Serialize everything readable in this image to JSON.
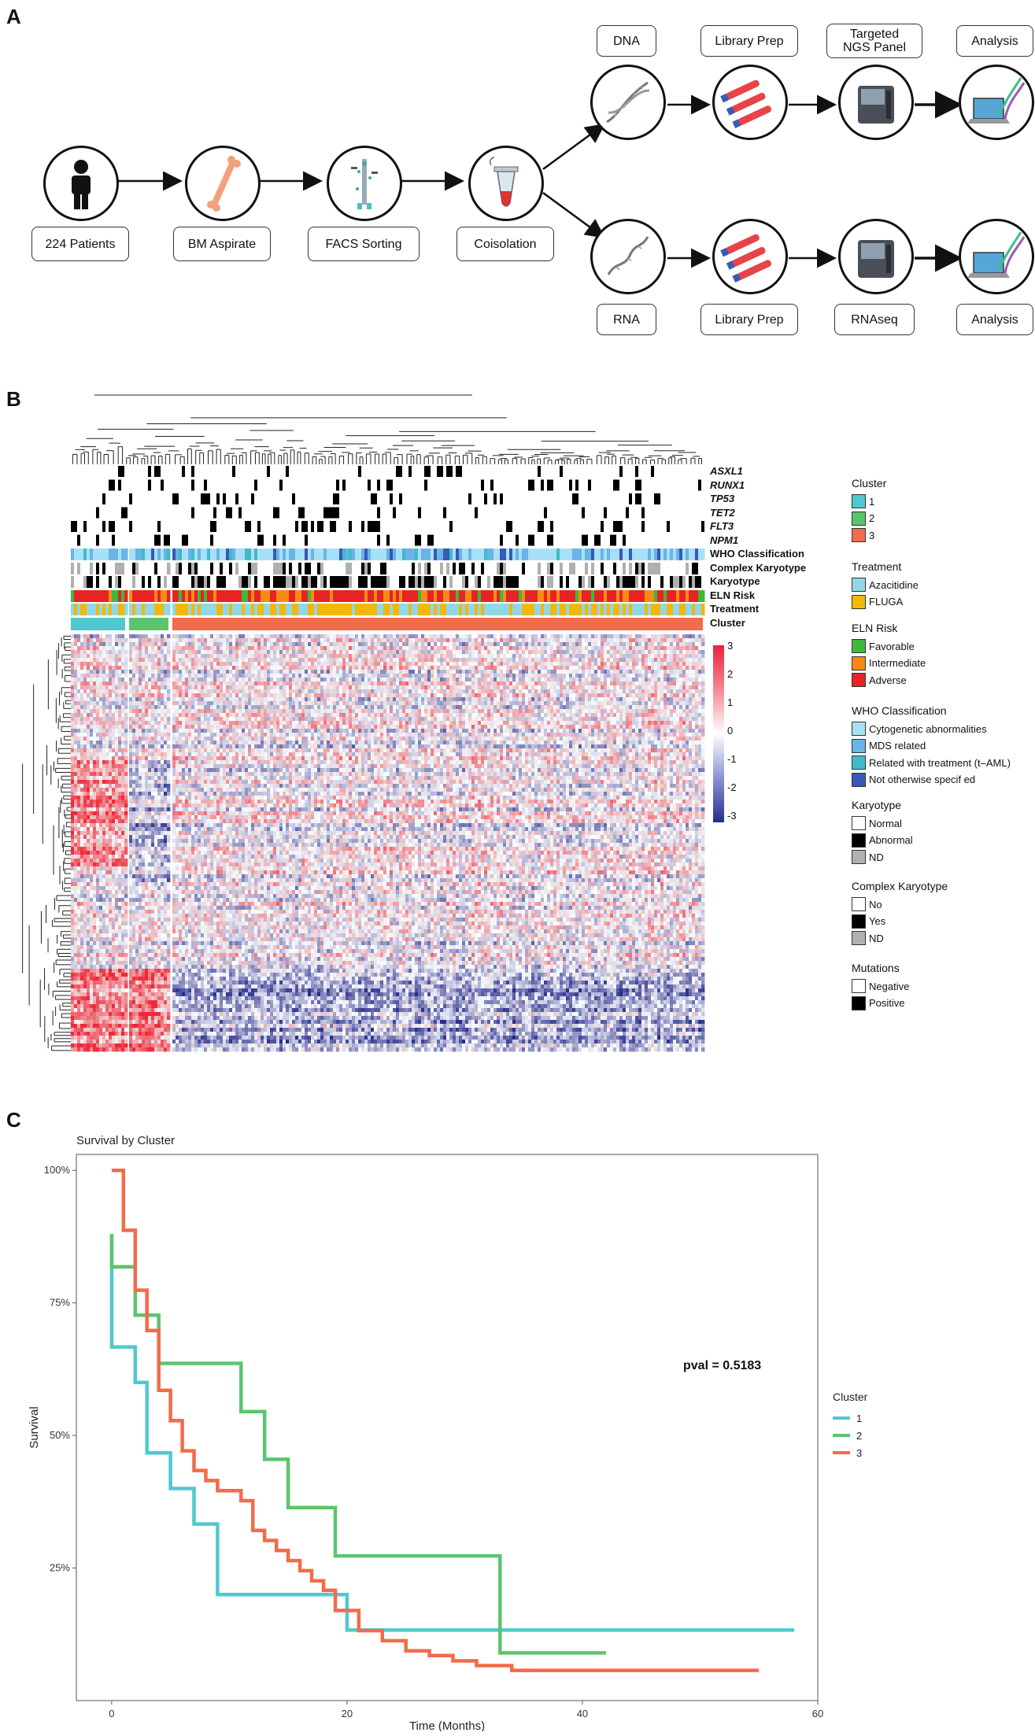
{
  "panels": {
    "a": "A",
    "b": "B",
    "c": "C"
  },
  "workflow": {
    "patients": "224 Patients",
    "bm_aspirate": "BM Aspirate",
    "facs_sorting": "FACS Sorting",
    "coisolation": "Coisolation",
    "dna": "DNA",
    "rna": "RNA",
    "library_prep_top": "Library Prep",
    "library_prep_bottom": "Library Prep",
    "targeted_panel": "Targeted\nNGS Panel",
    "rnaseq": "RNAseq",
    "analysis_top": "Analysis",
    "analysis_bottom": "Analysis"
  },
  "heatmap": {
    "genes": [
      "ASXL1",
      "RUNX1",
      "TP53",
      "TET2",
      "FLT3",
      "NPM1"
    ],
    "annotations": [
      "WHO Classification",
      "Complex Karyotype",
      "Karyotype",
      "ELN Risk",
      "Treatment",
      "Cluster"
    ],
    "scale_ticks": [
      "3",
      "2",
      "1",
      "0",
      "-1",
      "-2",
      "-3"
    ]
  },
  "legends": {
    "cluster": {
      "title": "Cluster",
      "items": [
        "1",
        "2",
        "3"
      ],
      "colors": [
        "#4fc9cf",
        "#5cc46e",
        "#f26b4a"
      ]
    },
    "treatment": {
      "title": "Treatment",
      "items": [
        "Azacitidine",
        "FLUGA"
      ],
      "colors": [
        "#8fd8e8",
        "#f2b807"
      ]
    },
    "eln": {
      "title": "ELN Risk",
      "items": [
        "Favorable",
        "Intermediate",
        "Adverse"
      ],
      "colors": [
        "#3db83d",
        "#f58b14",
        "#e82323"
      ]
    },
    "who": {
      "title": "WHO Classification",
      "items": [
        "Cytogenetic abnormalities",
        "MDS related",
        "Related with treatment (t–AML)",
        "Not otherwise specif ed"
      ],
      "colors": [
        "#a8e0f5",
        "#6ab4e6",
        "#3fbcc8",
        "#3b58b6"
      ]
    },
    "karyotype": {
      "title": "Karyotype",
      "items": [
        "Normal",
        "Abnormal",
        "ND"
      ],
      "colors": [
        "#ffffff",
        "#000000",
        "#b0b0b0"
      ]
    },
    "complex": {
      "title": "Complex Karyotype",
      "items": [
        "No",
        "Yes",
        "ND"
      ],
      "colors": [
        "#ffffff",
        "#000000",
        "#b0b0b0"
      ]
    },
    "mutations": {
      "title": "Mutations",
      "items": [
        "Negative",
        "Positive"
      ],
      "colors": [
        "#ffffff",
        "#000000"
      ]
    }
  },
  "chart_data": {
    "type": "line",
    "title": "Survival by Cluster",
    "xlabel": "Time (Months)",
    "ylabel": "Survival",
    "xlim": [
      -3,
      60
    ],
    "ylim": [
      0,
      1.03
    ],
    "x_ticks": [
      0,
      20,
      40,
      60
    ],
    "x_tick_labels": [
      "0",
      "20",
      "40",
      "60"
    ],
    "y_ticks": [
      0.25,
      0.5,
      0.75,
      1.0
    ],
    "y_tick_labels": [
      "25%",
      "50%",
      "75%",
      "100%"
    ],
    "annotation": "pval = 0.5183",
    "legend_title": "Cluster",
    "series": [
      {
        "name": "1",
        "color": "#4fc9cf",
        "x": [
          0,
          0,
          2,
          2,
          3,
          3,
          5,
          5,
          7,
          7,
          9,
          9,
          20,
          20,
          58
        ],
        "y": [
          0.88,
          0.667,
          0.667,
          0.6,
          0.6,
          0.467,
          0.467,
          0.4,
          0.4,
          0.333,
          0.333,
          0.2,
          0.2,
          0.133,
          0.133
        ]
      },
      {
        "name": "2",
        "color": "#5cc46e",
        "x": [
          0,
          0,
          2,
          2,
          4,
          4,
          11,
          11,
          13,
          13,
          15,
          15,
          19,
          19,
          33,
          33,
          42
        ],
        "y": [
          0.88,
          0.818,
          0.818,
          0.727,
          0.727,
          0.636,
          0.636,
          0.545,
          0.545,
          0.455,
          0.455,
          0.364,
          0.364,
          0.273,
          0.273,
          0.09,
          0.09
        ]
      },
      {
        "name": "3",
        "color": "#f26b4a",
        "x": [
          0,
          0,
          1,
          1,
          2,
          2,
          3,
          3,
          4,
          4,
          5,
          5,
          6,
          6,
          7,
          7,
          8,
          8,
          9,
          9,
          11,
          11,
          12,
          12,
          13,
          13,
          14,
          14,
          15,
          15,
          16,
          16,
          17,
          17,
          18,
          18,
          19,
          19,
          21,
          21,
          23,
          23,
          25,
          25,
          27,
          27,
          29,
          29,
          31,
          31,
          32,
          32,
          34,
          34,
          36,
          36,
          55
        ],
        "y": [
          1.0,
          1.0,
          1.0,
          0.887,
          0.887,
          0.774,
          0.774,
          0.698,
          0.698,
          0.585,
          0.585,
          0.528,
          0.528,
          0.471,
          0.471,
          0.434,
          0.434,
          0.415,
          0.415,
          0.396,
          0.396,
          0.377,
          0.377,
          0.321,
          0.321,
          0.302,
          0.302,
          0.283,
          0.283,
          0.264,
          0.264,
          0.245,
          0.245,
          0.226,
          0.226,
          0.208,
          0.208,
          0.17,
          0.17,
          0.132,
          0.132,
          0.113,
          0.113,
          0.094,
          0.094,
          0.085,
          0.085,
          0.075,
          0.075,
          0.066,
          0.066,
          0.066,
          0.066,
          0.057,
          0.057,
          0.057,
          0.057
        ]
      }
    ]
  }
}
